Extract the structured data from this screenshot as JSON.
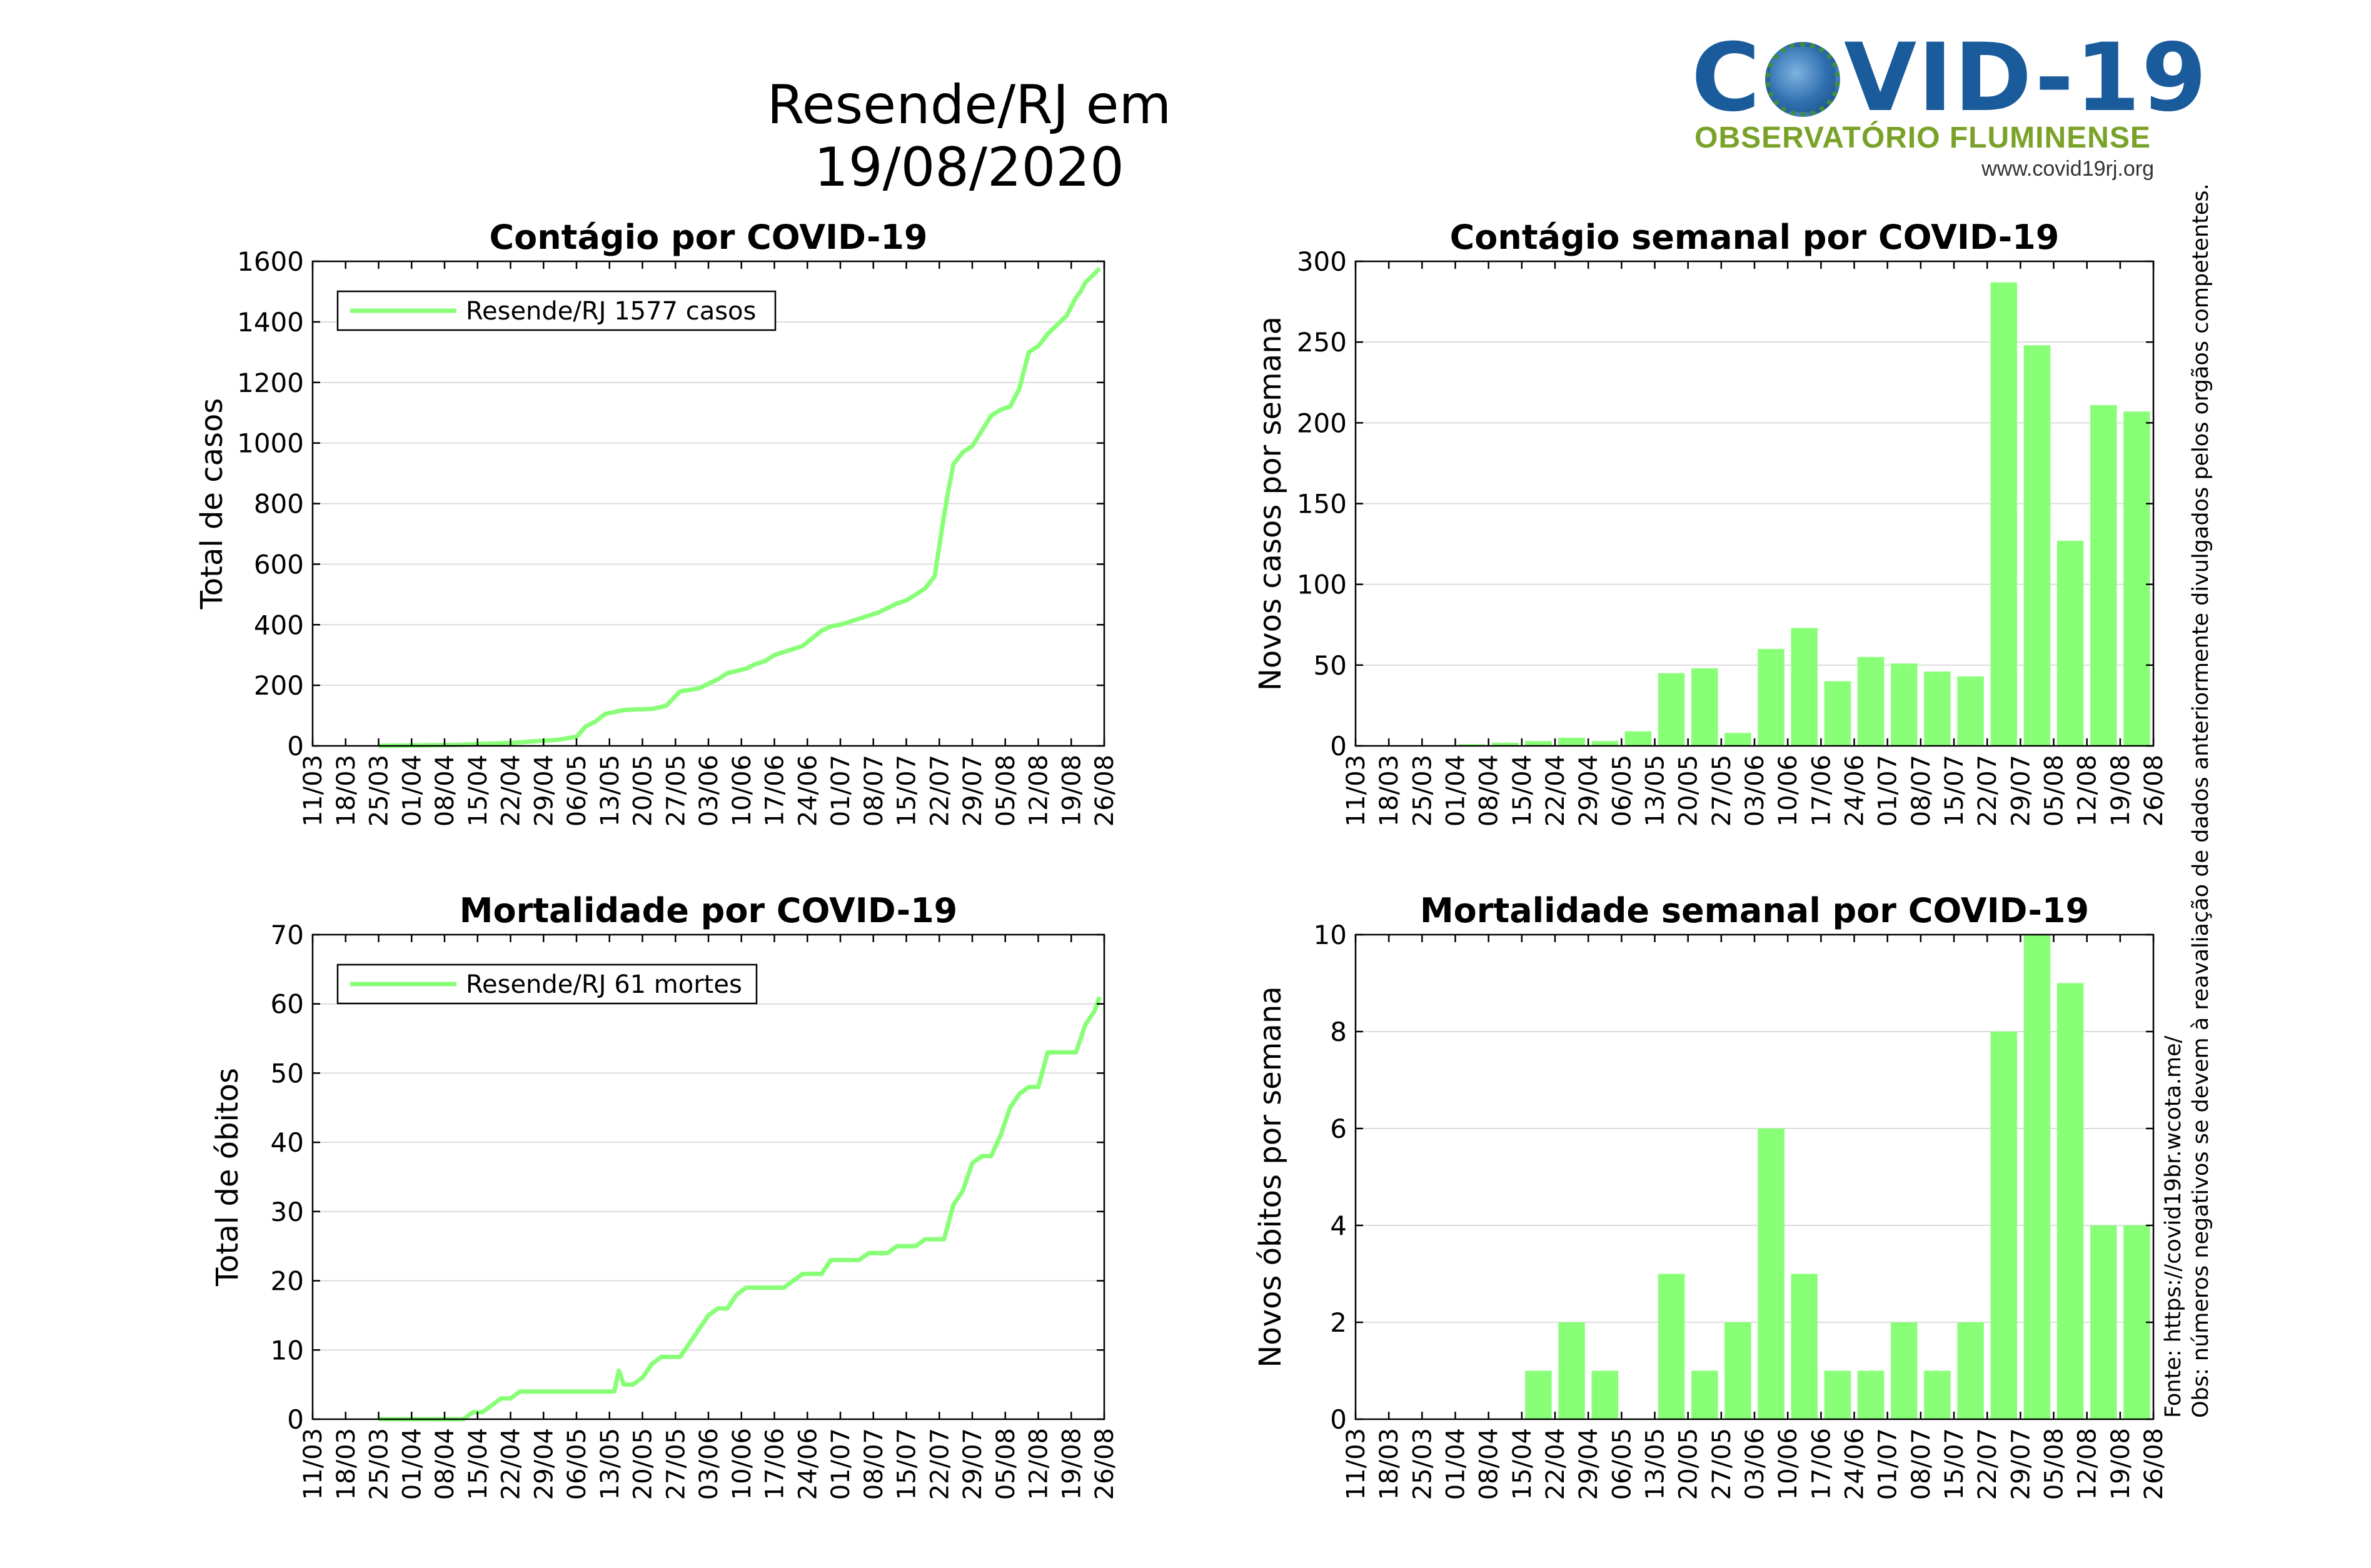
{
  "header": {
    "title": "Resende/RJ em 19/08/2020",
    "logo": {
      "word_pre": "C",
      "word_post": "VID-19",
      "subtitle": "OBSERVATÓRIO FLUMINENSE",
      "url": "www.covid19rj.org"
    }
  },
  "notes": {
    "source": "Fonte: https://covid19br.wcota.me/",
    "obs": "Obs: números negativos se devem à reavaliação de dados anteriormente divulgados pelos orgãos competentes."
  },
  "colors": {
    "series": "#88ff77",
    "bar": "#88ff77",
    "axis": "#000000",
    "grid": "#dcdcdc"
  },
  "chart_data": [
    {
      "type": "line",
      "title": "Contágio por COVID-19",
      "xlabel": "",
      "ylabel": "Total de casos",
      "ylim": [
        0,
        1600
      ],
      "yticks": [
        0,
        200,
        400,
        600,
        800,
        1000,
        1200,
        1400,
        1600
      ],
      "xticks": [
        "11/03",
        "18/03",
        "25/03",
        "01/04",
        "08/04",
        "15/04",
        "22/04",
        "29/04",
        "06/05",
        "13/05",
        "20/05",
        "27/05",
        "03/06",
        "10/06",
        "17/06",
        "24/06",
        "01/07",
        "08/07",
        "15/07",
        "22/07",
        "29/07",
        "05/08",
        "12/08",
        "19/08",
        "26/08"
      ],
      "xlim_days": [
        0,
        168
      ],
      "grid": true,
      "legend": {
        "position": "top-left",
        "entry": "Resende/RJ  1577 casos"
      },
      "series": [
        {
          "name": "Resende/RJ",
          "x": [
            14,
            30,
            42,
            52,
            56,
            58,
            60,
            62,
            66,
            68,
            72,
            75,
            78,
            80,
            82,
            86,
            88,
            92,
            94,
            96,
            98,
            100,
            104,
            108,
            110,
            112,
            114,
            118,
            120,
            122,
            124,
            126,
            128,
            130,
            132,
            134,
            135,
            136,
            138,
            140,
            142,
            144,
            146,
            148,
            150,
            152,
            154,
            156,
            158,
            160,
            162,
            163,
            164,
            166,
            167
          ],
          "y": [
            0,
            3,
            10,
            20,
            30,
            65,
            80,
            105,
            118,
            120,
            122,
            132,
            180,
            185,
            190,
            220,
            240,
            255,
            270,
            280,
            300,
            310,
            330,
            380,
            395,
            400,
            410,
            430,
            440,
            455,
            470,
            480,
            500,
            520,
            560,
            760,
            850,
            930,
            970,
            990,
            1040,
            1090,
            1110,
            1120,
            1180,
            1300,
            1320,
            1360,
            1390,
            1420,
            1480,
            1500,
            1530,
            1560,
            1577
          ]
        }
      ]
    },
    {
      "type": "bar",
      "title": "Contágio semanal por COVID-19",
      "xlabel": "",
      "ylabel": "Novos casos por semana",
      "ylim": [
        0,
        300
      ],
      "yticks": [
        0,
        50,
        100,
        150,
        200,
        250,
        300
      ],
      "xticks": [
        "11/03",
        "18/03",
        "25/03",
        "01/04",
        "08/04",
        "15/04",
        "22/04",
        "29/04",
        "06/05",
        "13/05",
        "20/05",
        "27/05",
        "03/06",
        "10/06",
        "17/06",
        "24/06",
        "01/07",
        "08/07",
        "15/07",
        "22/07",
        "29/07",
        "05/08",
        "12/08",
        "19/08",
        "26/08"
      ],
      "grid": true,
      "categories": [
        "11/03",
        "18/03",
        "25/03",
        "01/04",
        "08/04",
        "15/04",
        "22/04",
        "29/04",
        "06/05",
        "13/05",
        "20/05",
        "27/05",
        "03/06",
        "10/06",
        "17/06",
        "24/06",
        "01/07",
        "08/07",
        "15/07",
        "22/07",
        "29/07",
        "05/08",
        "12/08",
        "19/08"
      ],
      "values": [
        0,
        0,
        0,
        1,
        2,
        3,
        5,
        3,
        9,
        45,
        48,
        8,
        60,
        73,
        40,
        55,
        51,
        46,
        43,
        287,
        248,
        127,
        211,
        207
      ]
    },
    {
      "type": "line",
      "title": "Mortalidade por COVID-19",
      "xlabel": "",
      "ylabel": "Total de óbitos",
      "ylim": [
        0,
        70
      ],
      "yticks": [
        0,
        10,
        20,
        30,
        40,
        50,
        60,
        70
      ],
      "xticks": [
        "11/03",
        "18/03",
        "25/03",
        "01/04",
        "08/04",
        "15/04",
        "22/04",
        "29/04",
        "06/05",
        "13/05",
        "20/05",
        "27/05",
        "03/06",
        "10/06",
        "17/06",
        "24/06",
        "01/07",
        "08/07",
        "15/07",
        "22/07",
        "29/07",
        "05/08",
        "12/08",
        "19/08",
        "26/08"
      ],
      "xlim_days": [
        0,
        168
      ],
      "grid": true,
      "legend": {
        "position": "top-left",
        "entry": "Resende/RJ  61 mortes"
      },
      "series": [
        {
          "name": "Resende/RJ",
          "x": [
            14,
            32,
            34,
            36,
            38,
            40,
            42,
            44,
            46,
            48,
            64,
            65,
            66,
            67,
            68,
            70,
            72,
            74,
            76,
            78,
            80,
            82,
            84,
            86,
            88,
            90,
            92,
            94,
            96,
            98,
            100,
            102,
            104,
            106,
            108,
            110,
            112,
            114,
            116,
            118,
            120,
            122,
            124,
            126,
            128,
            130,
            132,
            134,
            136,
            138,
            140,
            142,
            144,
            146,
            148,
            150,
            152,
            154,
            156,
            158,
            160,
            162,
            164,
            166,
            167
          ],
          "y": [
            0,
            0,
            1,
            1,
            2,
            3,
            3,
            4,
            4,
            4,
            4,
            7,
            5,
            5,
            5,
            6,
            8,
            9,
            9,
            9,
            11,
            13,
            15,
            16,
            16,
            18,
            19,
            19,
            19,
            19,
            19,
            20,
            21,
            21,
            21,
            23,
            23,
            23,
            23,
            24,
            24,
            24,
            25,
            25,
            25,
            26,
            26,
            26,
            31,
            33,
            37,
            38,
            38,
            41,
            45,
            47,
            48,
            48,
            53,
            53,
            53,
            53,
            57,
            59,
            61
          ]
        }
      ]
    },
    {
      "type": "bar",
      "title": "Mortalidade semanal por COVID-19",
      "xlabel": "",
      "ylabel": "Novos óbitos por semana",
      "ylim": [
        0,
        10
      ],
      "yticks": [
        0,
        2,
        4,
        6,
        8,
        10
      ],
      "xticks": [
        "11/03",
        "18/03",
        "25/03",
        "01/04",
        "08/04",
        "15/04",
        "22/04",
        "29/04",
        "06/05",
        "13/05",
        "20/05",
        "27/05",
        "03/06",
        "10/06",
        "17/06",
        "24/06",
        "01/07",
        "08/07",
        "15/07",
        "22/07",
        "29/07",
        "05/08",
        "12/08",
        "19/08",
        "26/08"
      ],
      "grid": true,
      "categories": [
        "11/03",
        "18/03",
        "25/03",
        "01/04",
        "08/04",
        "15/04",
        "22/04",
        "29/04",
        "06/05",
        "13/05",
        "20/05",
        "27/05",
        "03/06",
        "10/06",
        "17/06",
        "24/06",
        "01/07",
        "08/07",
        "15/07",
        "22/07",
        "29/07",
        "05/08",
        "12/08",
        "19/08"
      ],
      "values": [
        0,
        0,
        0,
        0,
        0,
        1,
        2,
        1,
        0,
        3,
        1,
        2,
        6,
        3,
        1,
        1,
        2,
        1,
        2,
        8,
        10,
        9,
        4,
        4
      ]
    }
  ]
}
